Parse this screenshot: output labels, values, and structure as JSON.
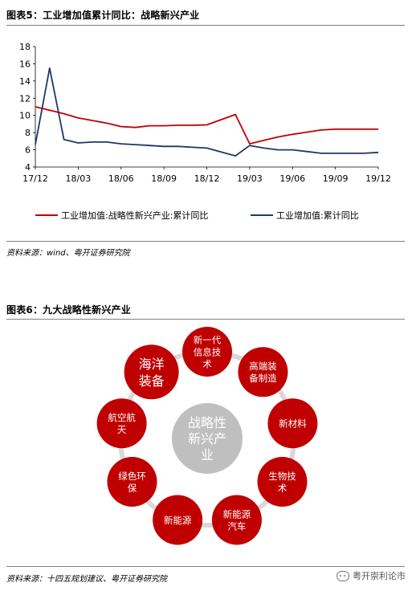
{
  "figure5": {
    "title": "图表5：工业增加值累计同比：战略新兴产业",
    "source": "资料来源：wind、粤开证券研究院"
  },
  "chart_data": {
    "type": "line",
    "x": [
      "17/12",
      "18/01",
      "18/02",
      "18/03",
      "18/04",
      "18/05",
      "18/06",
      "18/07",
      "18/08",
      "18/09",
      "18/10",
      "18/11",
      "18/12",
      "19/01",
      "19/02",
      "19/03",
      "19/04",
      "19/05",
      "19/06",
      "19/07",
      "19/08",
      "19/09",
      "19/10",
      "19/11",
      "19/12"
    ],
    "xticks": [
      "17/12",
      "18/03",
      "18/06",
      "18/09",
      "18/12",
      "19/03",
      "19/06",
      "19/09",
      "19/12"
    ],
    "yticks": [
      4,
      6,
      8,
      10,
      12,
      14,
      16,
      18
    ],
    "ylim": [
      4,
      18
    ],
    "grid": false,
    "legend_position": "bottom",
    "series": [
      {
        "name": "工业增加值:战略性新兴产业:累计同比",
        "color": "#c00000",
        "values": [
          11.0,
          10.6,
          10.2,
          9.7,
          9.4,
          9.1,
          8.7,
          8.6,
          8.8,
          8.8,
          8.85,
          8.85,
          8.9,
          null,
          10.1,
          6.7,
          7.1,
          7.5,
          7.8,
          8.05,
          8.3,
          8.4,
          8.4,
          8.4,
          8.4
        ]
      },
      {
        "name": "工业增加值:累计同比",
        "color": "#1f3864",
        "values": [
          6.6,
          15.5,
          7.2,
          6.8,
          6.9,
          6.9,
          6.7,
          6.6,
          6.5,
          6.4,
          6.4,
          6.3,
          6.2,
          null,
          5.3,
          6.5,
          6.2,
          6.0,
          6.0,
          5.8,
          5.6,
          5.6,
          5.6,
          5.6,
          5.7
        ]
      }
    ]
  },
  "figure6": {
    "title": "图表6：九大战略性新兴产业",
    "center_label": [
      "战略性",
      "新兴产",
      "业"
    ],
    "colors": {
      "node": "#c00000",
      "center": "#bfbfbf",
      "ring": "#d9d9d9",
      "text": "#ffffff"
    },
    "nodes": [
      {
        "lines": [
          "新一代",
          "信息技",
          "术"
        ]
      },
      {
        "lines": [
          "高端装",
          "备制造"
        ]
      },
      {
        "lines": [
          "新材料"
        ]
      },
      {
        "lines": [
          "生物技",
          "术"
        ]
      },
      {
        "lines": [
          "新能源",
          "汽车"
        ]
      },
      {
        "lines": [
          "新能源"
        ]
      },
      {
        "lines": [
          "绿色环",
          "保"
        ]
      },
      {
        "lines": [
          "航空航",
          "天"
        ]
      },
      {
        "lines": [
          "海洋",
          "装备"
        ]
      }
    ],
    "source": "资料来源：十四五规划建议、粤开证券研究院"
  },
  "watermark": {
    "text": "粤开崇利论市",
    "icon": "wechat-icon"
  }
}
